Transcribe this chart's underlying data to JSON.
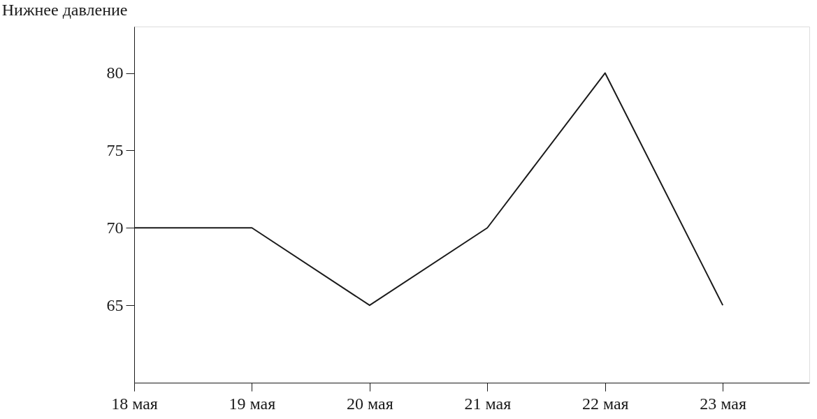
{
  "chart_data": {
    "type": "line",
    "ylabel": "Нижнее давление",
    "categories": [
      "18 мая",
      "19 мая",
      "20 мая",
      "21 мая",
      "22 мая",
      "23 мая"
    ],
    "series": [
      {
        "color": "#1a1a1a",
        "values": [
          70,
          70,
          65,
          70,
          80,
          65
        ]
      }
    ],
    "ylim": [
      60,
      83
    ],
    "yticks": [
      65,
      70,
      75,
      80
    ],
    "grid": false,
    "line_style": "solid"
  }
}
